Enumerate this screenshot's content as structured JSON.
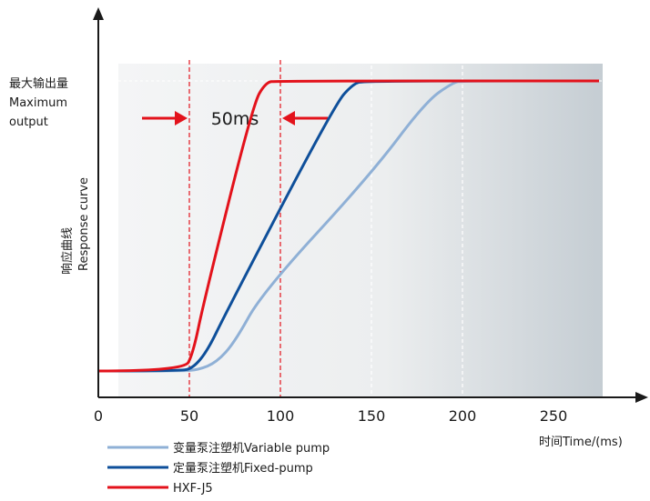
{
  "chart_data": {
    "type": "line",
    "x_unit_label": "时间Time/(ms)",
    "y_label_cn": "响应曲线",
    "y_label_en": "Response curve",
    "y_max_label_cn": "最大输出量",
    "y_max_label_en_1": "Maximum",
    "y_max_label_en_2": "output",
    "x_ticks": [
      "0",
      "50",
      "100",
      "150",
      "200",
      "250"
    ],
    "x_tick_values": [
      0,
      50,
      100,
      150,
      200,
      250
    ],
    "xlim": [
      0,
      300
    ],
    "ylim": [
      0,
      1.1
    ],
    "annotation": "50ms",
    "annotation_bounds": [
      50,
      100
    ],
    "series": [
      {
        "name": "变量泵注塑机Variable pump",
        "color": "#8fb0d6",
        "points": [
          [
            0,
            0
          ],
          [
            45,
            0
          ],
          [
            55,
            0.004
          ],
          [
            65,
            0.03
          ],
          [
            75,
            0.1
          ],
          [
            90,
            0.27
          ],
          [
            150,
            0.68
          ],
          [
            180,
            0.93
          ],
          [
            195,
            0.995
          ],
          [
            200,
            1
          ],
          [
            275,
            1
          ]
        ]
      },
      {
        "name": "定量泵注塑机Fixed-pump",
        "color": "#0e4f9a",
        "points": [
          [
            0,
            0
          ],
          [
            45,
            0
          ],
          [
            52,
            0.01
          ],
          [
            60,
            0.07
          ],
          [
            70,
            0.2
          ],
          [
            130,
            0.92
          ],
          [
            140,
            0.99
          ],
          [
            146,
            1
          ],
          [
            275,
            1
          ]
        ]
      },
      {
        "name": "HXF-J5",
        "color": "#e3121b",
        "points": [
          [
            0,
            0
          ],
          [
            47,
            0
          ],
          [
            52,
            0.06
          ],
          [
            58,
            0.24
          ],
          [
            85,
            0.92
          ],
          [
            92,
            0.995
          ],
          [
            98,
            1
          ],
          [
            275,
            1
          ]
        ]
      }
    ],
    "grid_vlines": [
      150,
      200
    ]
  }
}
